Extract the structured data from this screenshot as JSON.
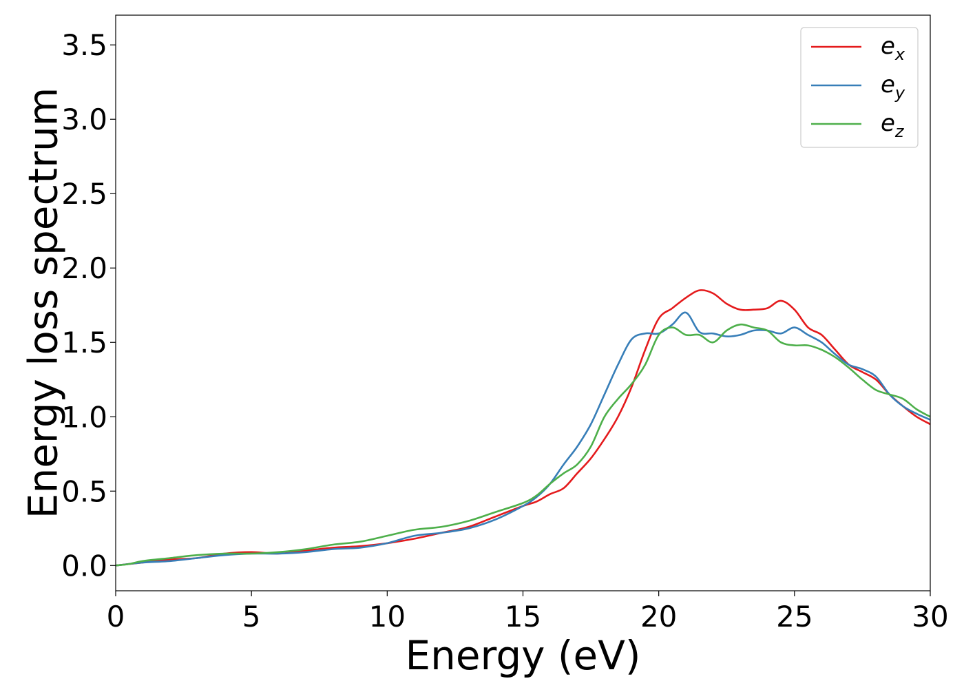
{
  "chart_data": {
    "type": "line",
    "xlabel": "Energy (eV)",
    "ylabel": "Energy loss spectrum",
    "xlim": [
      0,
      30
    ],
    "ylim": [
      -0.17,
      3.7
    ],
    "xticks": [
      "0",
      "5",
      "10",
      "15",
      "20",
      "25",
      "30"
    ],
    "yticks": [
      "0.0",
      "0.5",
      "1.0",
      "1.5",
      "2.0",
      "2.5",
      "3.0",
      "3.5"
    ],
    "xtick_values": [
      0,
      5,
      10,
      15,
      20,
      25,
      30
    ],
    "ytick_values": [
      0.0,
      0.5,
      1.0,
      1.5,
      2.0,
      2.5,
      3.0,
      3.5
    ],
    "grid": false,
    "legend_position": "top-right",
    "series": [
      {
        "name": "e_x",
        "label_base": "e",
        "label_sub": "x",
        "color": "#e41a1c",
        "x": [
          0,
          0.5,
          1,
          2,
          3,
          4,
          5,
          6,
          7,
          8,
          9,
          10,
          11,
          12,
          13,
          14,
          15,
          15.5,
          16,
          16.5,
          17,
          17.5,
          18,
          18.5,
          19,
          19.5,
          20,
          20.5,
          21,
          21.5,
          22,
          22.5,
          23,
          23.5,
          24,
          24.5,
          25,
          25.5,
          26,
          26.5,
          27,
          27.5,
          28,
          28.5,
          29,
          29.5,
          30
        ],
        "y": [
          0.0,
          0.01,
          0.02,
          0.04,
          0.05,
          0.08,
          0.09,
          0.08,
          0.1,
          0.12,
          0.13,
          0.15,
          0.18,
          0.22,
          0.26,
          0.33,
          0.4,
          0.43,
          0.48,
          0.52,
          0.62,
          0.72,
          0.85,
          1.0,
          1.2,
          1.45,
          1.66,
          1.73,
          1.8,
          1.85,
          1.83,
          1.76,
          1.72,
          1.72,
          1.73,
          1.78,
          1.72,
          1.6,
          1.55,
          1.45,
          1.35,
          1.3,
          1.25,
          1.15,
          1.07,
          1.0,
          0.95
        ]
      },
      {
        "name": "e_y",
        "label_base": "e",
        "label_sub": "y",
        "color": "#377eb8",
        "x": [
          0,
          0.5,
          1,
          2,
          3,
          4,
          5,
          6,
          7,
          8,
          9,
          10,
          11,
          12,
          13,
          14,
          15,
          15.5,
          16,
          16.5,
          17,
          17.5,
          18,
          18.5,
          19,
          19.5,
          20,
          20.5,
          21,
          21.5,
          22,
          22.5,
          23,
          23.5,
          24,
          24.5,
          25,
          25.5,
          26,
          26.5,
          27,
          27.5,
          28,
          28.5,
          29,
          29.5,
          30
        ],
        "y": [
          0.0,
          0.01,
          0.02,
          0.03,
          0.05,
          0.07,
          0.08,
          0.08,
          0.09,
          0.11,
          0.12,
          0.15,
          0.2,
          0.22,
          0.25,
          0.31,
          0.4,
          0.46,
          0.55,
          0.68,
          0.8,
          0.95,
          1.15,
          1.35,
          1.52,
          1.56,
          1.56,
          1.62,
          1.7,
          1.57,
          1.56,
          1.54,
          1.55,
          1.58,
          1.58,
          1.56,
          1.6,
          1.55,
          1.5,
          1.42,
          1.35,
          1.32,
          1.27,
          1.15,
          1.07,
          1.02,
          0.98
        ]
      },
      {
        "name": "e_z",
        "label_base": "e",
        "label_sub": "z",
        "color": "#4daf4a",
        "x": [
          0,
          0.5,
          1,
          2,
          3,
          4,
          5,
          6,
          7,
          8,
          9,
          10,
          11,
          12,
          13,
          14,
          15,
          15.5,
          16,
          16.5,
          17,
          17.5,
          18,
          18.5,
          19,
          19.5,
          20,
          20.5,
          21,
          21.5,
          22,
          22.5,
          23,
          23.5,
          24,
          24.5,
          25,
          25.5,
          26,
          26.5,
          27,
          27.5,
          28,
          28.5,
          29,
          29.5,
          30
        ],
        "y": [
          0.0,
          0.01,
          0.03,
          0.05,
          0.07,
          0.08,
          0.08,
          0.09,
          0.11,
          0.14,
          0.16,
          0.2,
          0.24,
          0.26,
          0.3,
          0.36,
          0.42,
          0.47,
          0.55,
          0.62,
          0.68,
          0.8,
          1.0,
          1.12,
          1.22,
          1.35,
          1.55,
          1.6,
          1.55,
          1.55,
          1.5,
          1.58,
          1.62,
          1.6,
          1.58,
          1.5,
          1.48,
          1.48,
          1.45,
          1.4,
          1.33,
          1.25,
          1.18,
          1.15,
          1.12,
          1.05,
          1.0
        ]
      }
    ]
  }
}
